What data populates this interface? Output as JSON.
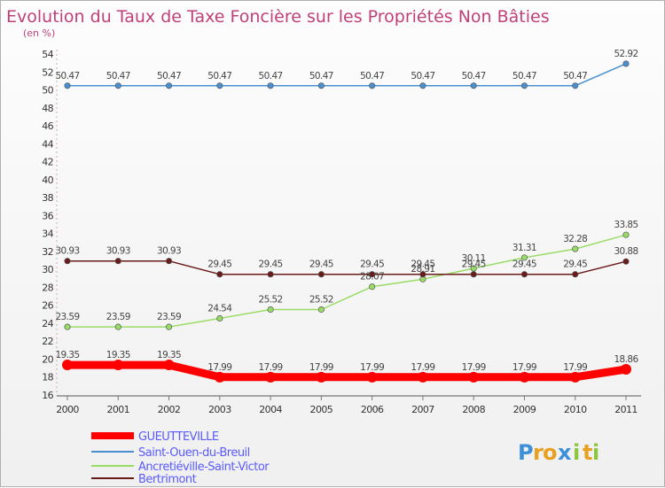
{
  "chart_data": {
    "type": "line",
    "title": "Evolution du Taux de Taxe Foncière sur les Propriétés Non Bâties",
    "subtitle": "(en %)",
    "xlabel": "",
    "ylabel": "",
    "x": [
      "2000",
      "2001",
      "2002",
      "2003",
      "2004",
      "2005",
      "2006",
      "2007",
      "2008",
      "2009",
      "2010",
      "2011"
    ],
    "ylim": [
      16,
      54
    ],
    "ytick_step": 2,
    "yticks": [
      "16",
      "18",
      "20",
      "22",
      "24",
      "26",
      "28",
      "30",
      "32",
      "34",
      "36",
      "38",
      "40",
      "42",
      "44",
      "46",
      "48",
      "50",
      "52",
      "54"
    ],
    "grid": false,
    "legend_position": "bottom-left",
    "series": [
      {
        "name": "GUEUTTEVILLE",
        "color": "#ff0000",
        "values": [
          19.35,
          19.35,
          19.35,
          17.99,
          17.99,
          17.99,
          17.99,
          17.99,
          17.99,
          17.99,
          17.99,
          18.86
        ],
        "labels": [
          "19.35",
          "19.35",
          "19.35",
          "17.99",
          "17.99",
          "17.99",
          "17.99",
          "17.99",
          "17.99",
          "17.99",
          "17.99",
          "18.86"
        ]
      },
      {
        "name": "Saint-Ouen-du-Breuil",
        "color": "#4a90d0",
        "values": [
          50.47,
          50.47,
          50.47,
          50.47,
          50.47,
          50.47,
          50.47,
          50.47,
          50.47,
          50.47,
          50.47,
          52.92
        ],
        "labels": [
          "50.47",
          "50.47",
          "50.47",
          "50.47",
          "50.47",
          "50.47",
          "50.47",
          "50.47",
          "50.47",
          "50.47",
          "50.47",
          "52.92"
        ]
      },
      {
        "name": "Ancretiéville-Saint-Victor",
        "color": "#99dd66",
        "values": [
          23.59,
          23.59,
          23.59,
          24.54,
          25.52,
          25.52,
          28.07,
          28.91,
          30.11,
          31.31,
          32.28,
          33.85
        ],
        "labels": [
          "23.59",
          "23.59",
          "23.59",
          "24.54",
          "25.52",
          "25.52",
          "28.07",
          "28.91",
          "30.11",
          "31.31",
          "32.28",
          "33.85"
        ]
      },
      {
        "name": "Bertrimont",
        "color": "#6b1a1a",
        "values": [
          30.93,
          30.93,
          30.93,
          29.45,
          29.45,
          29.45,
          29.45,
          29.45,
          29.45,
          29.45,
          29.45,
          30.88
        ],
        "labels": [
          "30.93",
          "30.93",
          "30.93",
          "29.45",
          "29.45",
          "29.45",
          "29.45",
          "29.45",
          "29.45",
          "29.45",
          "29.45",
          "30.88"
        ]
      }
    ]
  },
  "logo": {
    "letters": [
      "P",
      "r",
      "o",
      "x",
      "i",
      "t",
      "i"
    ],
    "colors": [
      "#3d8fd8",
      "#e8a020",
      "#e8a020",
      "#3d8fd8",
      "#8dc63f",
      "#e8a020",
      "#8dc63f"
    ]
  }
}
